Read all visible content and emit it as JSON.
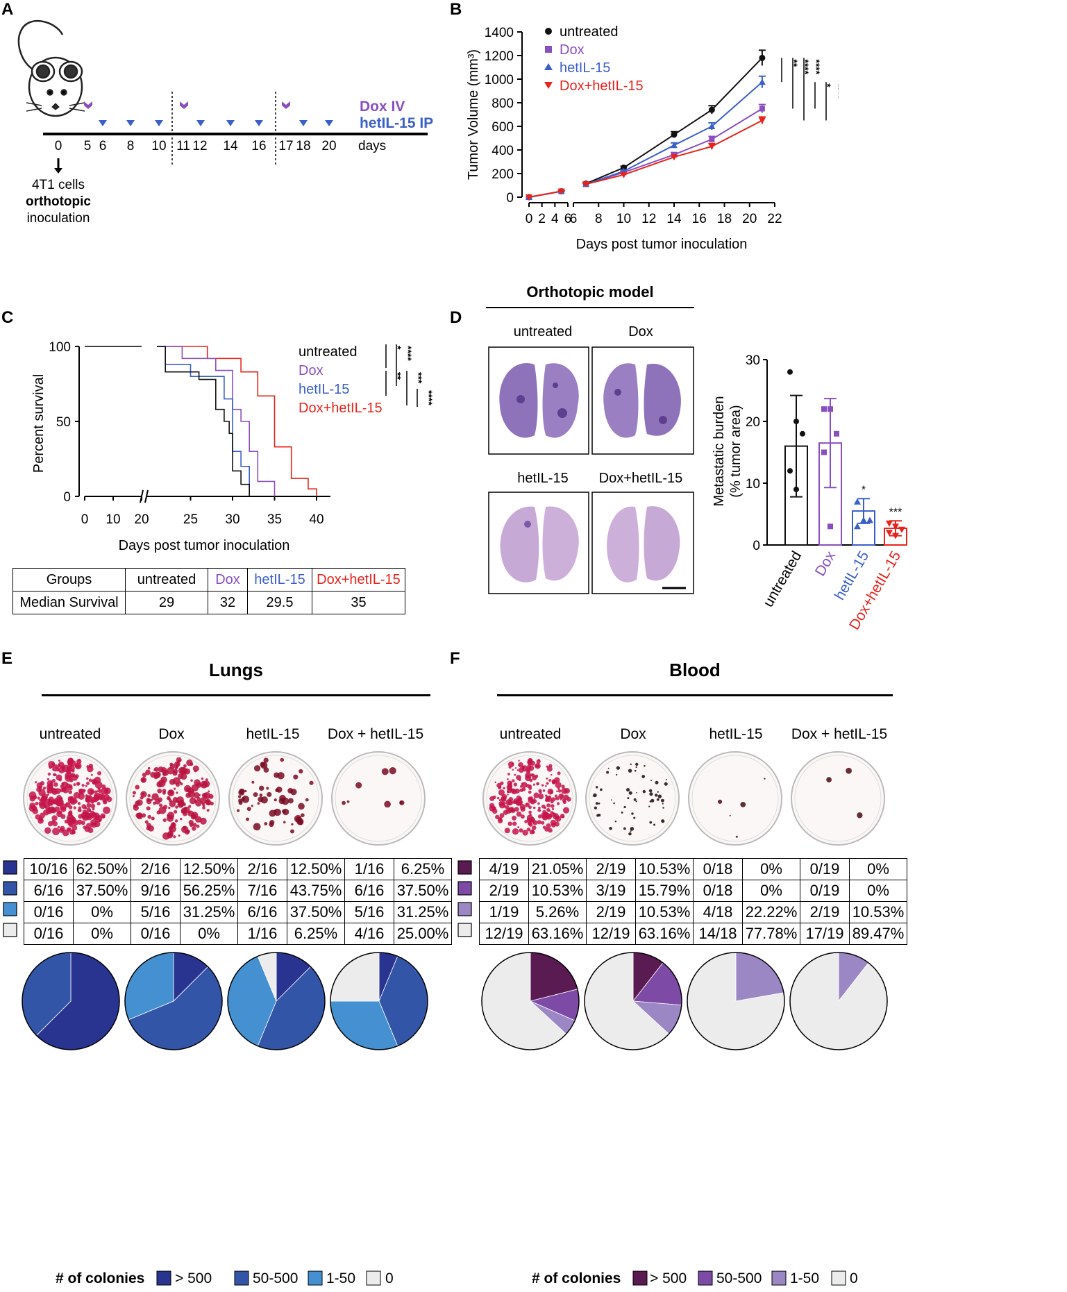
{
  "panel_letters": {
    "A": "A",
    "B": "B",
    "C": "C",
    "D": "D",
    "E": "E",
    "F": "F"
  },
  "colors": {
    "black": "#111111",
    "dox": "#8a4fbf",
    "hetil15": "#3a5fc8",
    "combo": "#e8231c",
    "lung_gt500": "#28348f",
    "lung_50_500": "#3355a8",
    "lung_1_50": "#4590d0",
    "zero": "#ececec",
    "blood_gt500": "#5a1a52",
    "blood_50_500": "#7d4aa6",
    "blood_1_50": "#9b87c4"
  },
  "panel_a": {
    "dox_label": "Dox IV",
    "hetil15_label": "hetIL-15 IP",
    "days_label": "days",
    "ticks": [
      "0",
      "5",
      "6",
      "8",
      "10",
      "11",
      "12",
      "14",
      "16",
      "17",
      "18",
      "20"
    ],
    "inoculation_line1": "4T1 cells",
    "inoculation_line2": "orthotopic",
    "inoculation_line3": "inoculation"
  },
  "chart_data": [
    {
      "panel": "B",
      "type": "line",
      "ylabel": "Tumor Volume (mm³)",
      "xlabel": "Days post tumor inoculation",
      "ylim": [
        0,
        1400
      ],
      "yticks": [
        "0",
        "200",
        "400",
        "600",
        "800",
        "1000",
        "1200",
        "1400"
      ],
      "xticks_left": [
        "0",
        "2",
        "4",
        "6"
      ],
      "xticks_right": [
        "6",
        "8",
        "10",
        "12",
        "14",
        "16",
        "18",
        "20",
        "22"
      ],
      "series": [
        {
          "name": "untreated",
          "x": [
            0,
            5,
            7,
            10,
            14,
            17,
            21
          ],
          "values": [
            0,
            50,
            115,
            250,
            530,
            740,
            1180
          ],
          "err": [
            0,
            5,
            8,
            12,
            25,
            35,
            65
          ]
        },
        {
          "name": "Dox",
          "x": [
            0,
            5,
            7,
            10,
            14,
            17,
            21
          ],
          "values": [
            0,
            50,
            110,
            210,
            360,
            490,
            750
          ],
          "err": [
            0,
            5,
            6,
            10,
            18,
            25,
            35
          ]
        },
        {
          "name": "hetIL-15",
          "x": [
            0,
            5,
            7,
            10,
            14,
            17,
            21
          ],
          "values": [
            0,
            50,
            110,
            220,
            440,
            600,
            975
          ],
          "err": [
            0,
            5,
            6,
            10,
            20,
            30,
            50
          ]
        },
        {
          "name": "Dox+hetIL-15",
          "x": [
            0,
            5,
            7,
            10,
            14,
            17,
            21
          ],
          "values": [
            0,
            50,
            110,
            190,
            340,
            430,
            650
          ],
          "err": [
            0,
            5,
            6,
            10,
            15,
            25,
            30
          ]
        }
      ],
      "significance": [
        "**",
        "****",
        "****",
        "*",
        "****"
      ]
    },
    {
      "panel": "C",
      "type": "line",
      "ylabel": "Percent survival",
      "xlabel": "Days post tumor inoculation",
      "ylim": [
        0,
        100
      ],
      "yticks": [
        "0",
        "50",
        "100"
      ],
      "xticks": [
        "0",
        "10",
        "20",
        "25",
        "30",
        "35",
        "40"
      ],
      "series": [
        {
          "name": "untreated",
          "steps": [
            [
              0,
              100
            ],
            [
              22,
              100
            ],
            [
              22,
              83
            ],
            [
              26,
              83
            ],
            [
              26,
              78
            ],
            [
              28,
              78
            ],
            [
              28,
              58
            ],
            [
              29,
              58
            ],
            [
              29,
              50
            ],
            [
              29.6,
              50
            ],
            [
              29.6,
              42
            ],
            [
              30,
              42
            ],
            [
              30,
              17
            ],
            [
              31,
              17
            ],
            [
              31,
              8
            ],
            [
              32,
              8
            ],
            [
              32,
              0
            ]
          ]
        },
        {
          "name": "Dox",
          "steps": [
            [
              0,
              100
            ],
            [
              24,
              100
            ],
            [
              24,
              92
            ],
            [
              28,
              92
            ],
            [
              28,
              84
            ],
            [
              30,
              84
            ],
            [
              30,
              58
            ],
            [
              31,
              58
            ],
            [
              31,
              50
            ],
            [
              32,
              50
            ],
            [
              32,
              30
            ],
            [
              33,
              30
            ],
            [
              33,
              10
            ],
            [
              35,
              10
            ],
            [
              35,
              0
            ]
          ]
        },
        {
          "name": "hetIL-15",
          "steps": [
            [
              0,
              100
            ],
            [
              22,
              100
            ],
            [
              22,
              88
            ],
            [
              25,
              88
            ],
            [
              25,
              80
            ],
            [
              29,
              80
            ],
            [
              29,
              65
            ],
            [
              30,
              65
            ],
            [
              30,
              30
            ],
            [
              31,
              30
            ],
            [
              31,
              20
            ],
            [
              32,
              20
            ],
            [
              32,
              0
            ]
          ]
        },
        {
          "name": "Dox+hetIL-15",
          "steps": [
            [
              0,
              100
            ],
            [
              27,
              100
            ],
            [
              27,
              92
            ],
            [
              31,
              92
            ],
            [
              31,
              83
            ],
            [
              33,
              83
            ],
            [
              33,
              67
            ],
            [
              35,
              67
            ],
            [
              35,
              33
            ],
            [
              37,
              33
            ],
            [
              37,
              12
            ],
            [
              39,
              12
            ],
            [
              39,
              5
            ],
            [
              40,
              5
            ],
            [
              40,
              0
            ]
          ]
        }
      ],
      "significance": [
        "*",
        "****",
        "**",
        "***",
        "****"
      ]
    },
    {
      "panel": "D",
      "type": "bar",
      "ylabel_line1": "Metastatic burden",
      "ylabel_line2": "(% tumor area)",
      "ylim": [
        0,
        30
      ],
      "yticks": [
        "0",
        "10",
        "20",
        "30"
      ],
      "categories": [
        "untreated",
        "Dox",
        "hetIL-15",
        "Dox+hetIL-15"
      ],
      "values": [
        16,
        16.5,
        5.5,
        2.7
      ],
      "sd": [
        8.2,
        7.2,
        2,
        1.2
      ],
      "points": [
        [
          28,
          20,
          18,
          12,
          9
        ],
        [
          22,
          22,
          18,
          15,
          3
        ],
        [
          7,
          4,
          4,
          3
        ],
        [
          3.5,
          3,
          2.5,
          2,
          1.5
        ]
      ],
      "stars": [
        "",
        "",
        "*",
        "***"
      ]
    },
    {
      "panel": "E",
      "type": "pie",
      "title": "Lungs",
      "categories": [
        "> 500",
        "50-500",
        "1-50",
        "0"
      ],
      "groups": [
        "untreated",
        "Dox",
        "hetIL-15",
        "Dox + hetIL-15"
      ],
      "series": [
        {
          "name": "untreated",
          "values": [
            62.5,
            37.5,
            0,
            0
          ]
        },
        {
          "name": "Dox",
          "values": [
            12.5,
            56.25,
            31.25,
            0
          ]
        },
        {
          "name": "hetIL-15",
          "values": [
            12.5,
            43.75,
            37.5,
            6.25
          ]
        },
        {
          "name": "Dox + hetIL-15",
          "values": [
            6.25,
            37.5,
            31.25,
            25.0
          ]
        }
      ]
    },
    {
      "panel": "F",
      "type": "pie",
      "title": "Blood",
      "categories": [
        "> 500",
        "50-500",
        "1-50",
        "0"
      ],
      "groups": [
        "untreated",
        "Dox",
        "hetIL-15",
        "Dox + hetIL-15"
      ],
      "series": [
        {
          "name": "untreated",
          "values": [
            21.05,
            10.53,
            5.26,
            63.16
          ]
        },
        {
          "name": "Dox",
          "values": [
            10.53,
            15.79,
            10.53,
            63.16
          ]
        },
        {
          "name": "hetIL-15",
          "values": [
            0,
            0,
            22.22,
            77.78
          ]
        },
        {
          "name": "Dox + hetIL-15",
          "values": [
            0,
            0,
            10.53,
            89.47
          ]
        }
      ]
    }
  ],
  "legend_groups": [
    "untreated",
    "Dox",
    "hetIL-15",
    "Dox+hetIL-15"
  ],
  "median_table": {
    "header_label": "Groups",
    "row_label": "Median Survival",
    "groups": [
      "untreated",
      "Dox",
      "hetIL-15",
      "Dox+hetIL-15"
    ],
    "values": [
      "29",
      "32",
      "29.5",
      "35"
    ]
  },
  "panel_d": {
    "title": "Orthotopic model",
    "image_labels": [
      "untreated",
      "Dox",
      "hetIL-15",
      "Dox+hetIL-15"
    ]
  },
  "lungs_table": [
    [
      "10/16",
      "62.50%",
      "2/16",
      "12.50%",
      "2/16",
      "12.50%",
      "1/16",
      "6.25%"
    ],
    [
      "6/16",
      "37.50%",
      "9/16",
      "56.25%",
      "7/16",
      "43.75%",
      "6/16",
      "37.50%"
    ],
    [
      "0/16",
      "0%",
      "5/16",
      "31.25%",
      "6/16",
      "37.50%",
      "5/16",
      "31.25%"
    ],
    [
      "0/16",
      "0%",
      "0/16",
      "0%",
      "1/16",
      "6.25%",
      "4/16",
      "25.00%"
    ]
  ],
  "blood_table": [
    [
      "4/19",
      "21.05%",
      "2/19",
      "10.53%",
      "0/18",
      "0%",
      "0/19",
      "0%"
    ],
    [
      "2/19",
      "10.53%",
      "3/19",
      "15.79%",
      "0/18",
      "0%",
      "0/19",
      "0%"
    ],
    [
      "1/19",
      "5.26%",
      "2/19",
      "10.53%",
      "4/18",
      "22.22%",
      "2/19",
      "10.53%"
    ],
    [
      "12/19",
      "63.16%",
      "12/19",
      "63.16%",
      "14/18",
      "77.78%",
      "17/19",
      "89.47%"
    ]
  ],
  "colony_legend": {
    "title": "# of colonies",
    "items": [
      "> 500",
      "50-500",
      "1-50",
      "0"
    ]
  }
}
